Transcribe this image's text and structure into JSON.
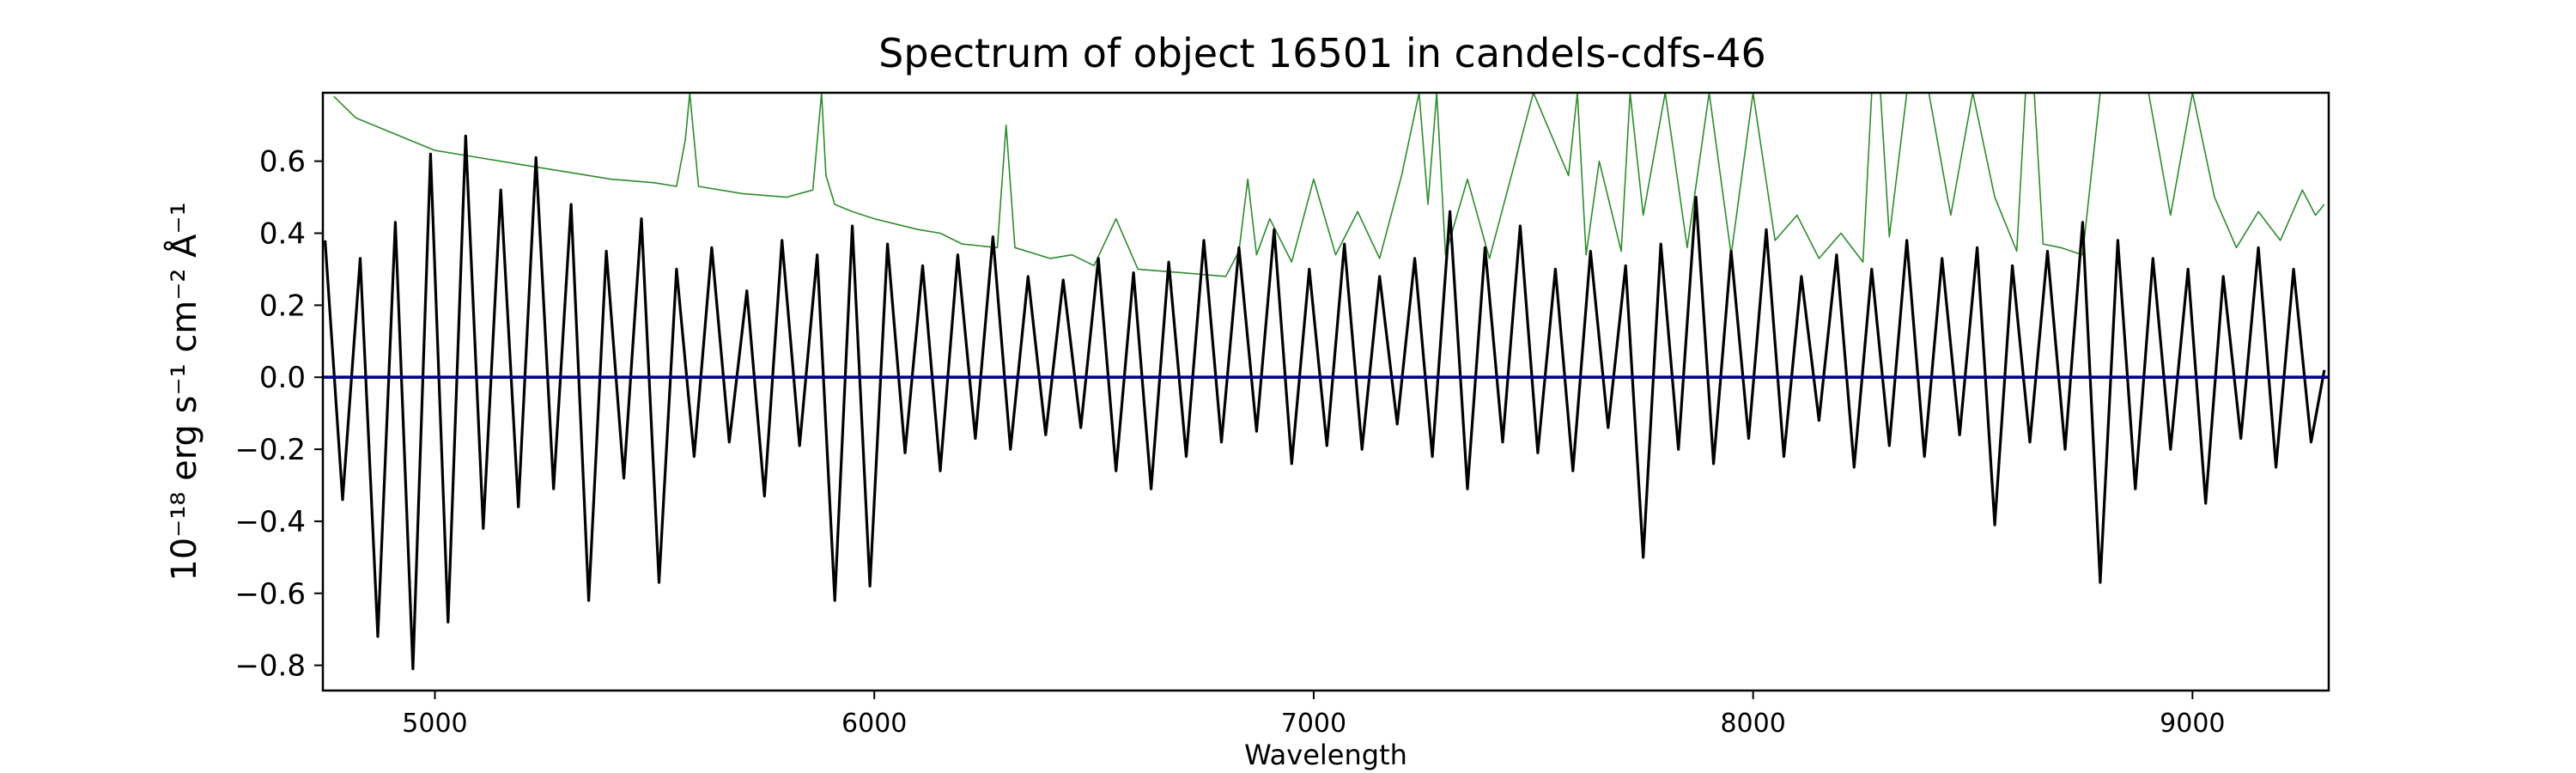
{
  "chart_data": {
    "type": "line",
    "title": "Spectrum of object 16501 in candels-cdfs-46",
    "xlabel": "Wavelength",
    "ylabel": "10⁻¹⁸ erg s⁻¹ cm⁻² Å⁻¹",
    "xlim": [
      4745,
      9310
    ],
    "ylim": [
      -0.87,
      0.79
    ],
    "xticks": [
      5000,
      6000,
      7000,
      8000,
      9000
    ],
    "yticks": [
      -0.8,
      -0.6,
      -0.4,
      -0.2,
      0.0,
      0.2,
      0.4,
      0.6
    ],
    "ytick_labels": [
      "−0.8",
      "−0.6",
      "−0.4",
      "−0.2",
      "0.0",
      "0.2",
      "0.4",
      "0.6"
    ],
    "grid": false,
    "legend": "none",
    "series": [
      {
        "role": "flux",
        "color": "#000000",
        "x": [
          4750,
          4790,
          4830,
          4870,
          4910,
          4950,
          4990,
          5030,
          5070,
          5110,
          5150,
          5190,
          5230,
          5270,
          5310,
          5350,
          5390,
          5430,
          5470,
          5510,
          5550,
          5590,
          5630,
          5670,
          5710,
          5750,
          5790,
          5830,
          5870,
          5910,
          5950,
          5990,
          6030,
          6070,
          6110,
          6150,
          6190,
          6230,
          6270,
          6310,
          6350,
          6390,
          6430,
          6470,
          6510,
          6550,
          6590,
          6630,
          6670,
          6710,
          6750,
          6790,
          6830,
          6870,
          6910,
          6950,
          6990,
          7030,
          7070,
          7110,
          7150,
          7190,
          7230,
          7270,
          7310,
          7350,
          7390,
          7430,
          7470,
          7510,
          7550,
          7590,
          7630,
          7670,
          7710,
          7750,
          7790,
          7830,
          7870,
          7910,
          7950,
          7990,
          8030,
          8070,
          8110,
          8150,
          8190,
          8230,
          8270,
          8310,
          8350,
          8390,
          8430,
          8470,
          8510,
          8550,
          8590,
          8630,
          8670,
          8710,
          8750,
          8790,
          8830,
          8870,
          8910,
          8950,
          8990,
          9030,
          9070,
          9110,
          9150,
          9190,
          9230,
          9270,
          9300
        ],
        "y": [
          0.38,
          -0.34,
          0.33,
          -0.72,
          0.43,
          -0.81,
          0.62,
          -0.68,
          0.67,
          -0.42,
          0.52,
          -0.36,
          0.61,
          -0.31,
          0.48,
          -0.62,
          0.35,
          -0.28,
          0.44,
          -0.57,
          0.3,
          -0.22,
          0.36,
          -0.18,
          0.24,
          -0.33,
          0.38,
          -0.19,
          0.34,
          -0.62,
          0.42,
          -0.58,
          0.37,
          -0.21,
          0.31,
          -0.26,
          0.34,
          -0.17,
          0.39,
          -0.2,
          0.28,
          -0.16,
          0.27,
          -0.14,
          0.33,
          -0.26,
          0.29,
          -0.31,
          0.32,
          -0.22,
          0.38,
          -0.18,
          0.36,
          -0.15,
          0.41,
          -0.24,
          0.3,
          -0.19,
          0.37,
          -0.2,
          0.28,
          -0.13,
          0.33,
          -0.22,
          0.46,
          -0.31,
          0.36,
          -0.18,
          0.42,
          -0.21,
          0.3,
          -0.26,
          0.35,
          -0.14,
          0.31,
          -0.5,
          0.37,
          -0.2,
          0.5,
          -0.24,
          0.35,
          -0.17,
          0.41,
          -0.22,
          0.28,
          -0.12,
          0.34,
          -0.25,
          0.3,
          -0.19,
          0.38,
          -0.22,
          0.33,
          -0.16,
          0.36,
          -0.41,
          0.31,
          -0.18,
          0.35,
          -0.2,
          0.43,
          -0.57,
          0.38,
          -0.31,
          0.33,
          -0.2,
          0.3,
          -0.35,
          0.28,
          -0.17,
          0.36,
          -0.25,
          0.3,
          -0.18,
          0.02
        ]
      },
      {
        "role": "error",
        "color": "#2e8b2e",
        "x": [
          4770,
          4820,
          4900,
          5000,
          5100,
          5200,
          5300,
          5400,
          5500,
          5550,
          5570,
          5580,
          5600,
          5700,
          5800,
          5860,
          5880,
          5890,
          5910,
          5950,
          6000,
          6100,
          6150,
          6200,
          6280,
          6300,
          6320,
          6400,
          6450,
          6500,
          6550,
          6600,
          6700,
          6800,
          6830,
          6850,
          6870,
          6900,
          6950,
          7000,
          7050,
          7100,
          7150,
          7200,
          7240,
          7260,
          7280,
          7300,
          7350,
          7400,
          7500,
          7580,
          7600,
          7620,
          7650,
          7700,
          7720,
          7750,
          7800,
          7850,
          7900,
          7950,
          8000,
          8050,
          8100,
          8150,
          8200,
          8250,
          8270,
          8290,
          8310,
          8350,
          8400,
          8450,
          8500,
          8550,
          8600,
          8620,
          8640,
          8660,
          8700,
          8750,
          8790,
          8820,
          8850,
          8900,
          8950,
          9000,
          9050,
          9100,
          9150,
          9200,
          9250,
          9280,
          9300
        ],
        "y": [
          0.78,
          0.72,
          0.68,
          0.63,
          0.61,
          0.59,
          0.57,
          0.55,
          0.54,
          0.53,
          0.66,
          0.79,
          0.53,
          0.51,
          0.5,
          0.52,
          0.79,
          0.56,
          0.48,
          0.46,
          0.44,
          0.41,
          0.4,
          0.37,
          0.36,
          0.7,
          0.36,
          0.33,
          0.34,
          0.31,
          0.44,
          0.3,
          0.29,
          0.28,
          0.35,
          0.55,
          0.34,
          0.44,
          0.32,
          0.55,
          0.34,
          0.46,
          0.33,
          0.56,
          0.79,
          0.48,
          0.79,
          0.34,
          0.55,
          0.33,
          0.79,
          0.56,
          0.79,
          0.34,
          0.6,
          0.35,
          0.79,
          0.45,
          0.79,
          0.36,
          0.79,
          0.34,
          0.79,
          0.38,
          0.45,
          0.33,
          0.4,
          0.32,
          0.79,
          0.79,
          0.39,
          0.79,
          0.79,
          0.45,
          0.79,
          0.5,
          0.35,
          0.79,
          0.79,
          0.37,
          0.36,
          0.34,
          0.79,
          0.79,
          0.79,
          0.79,
          0.45,
          0.79,
          0.5,
          0.36,
          0.46,
          0.38,
          0.52,
          0.45,
          0.48
        ]
      },
      {
        "role": "model",
        "color": "#00008b",
        "x": [
          4745,
          9310
        ],
        "y": [
          0.0,
          0.0
        ]
      }
    ]
  }
}
